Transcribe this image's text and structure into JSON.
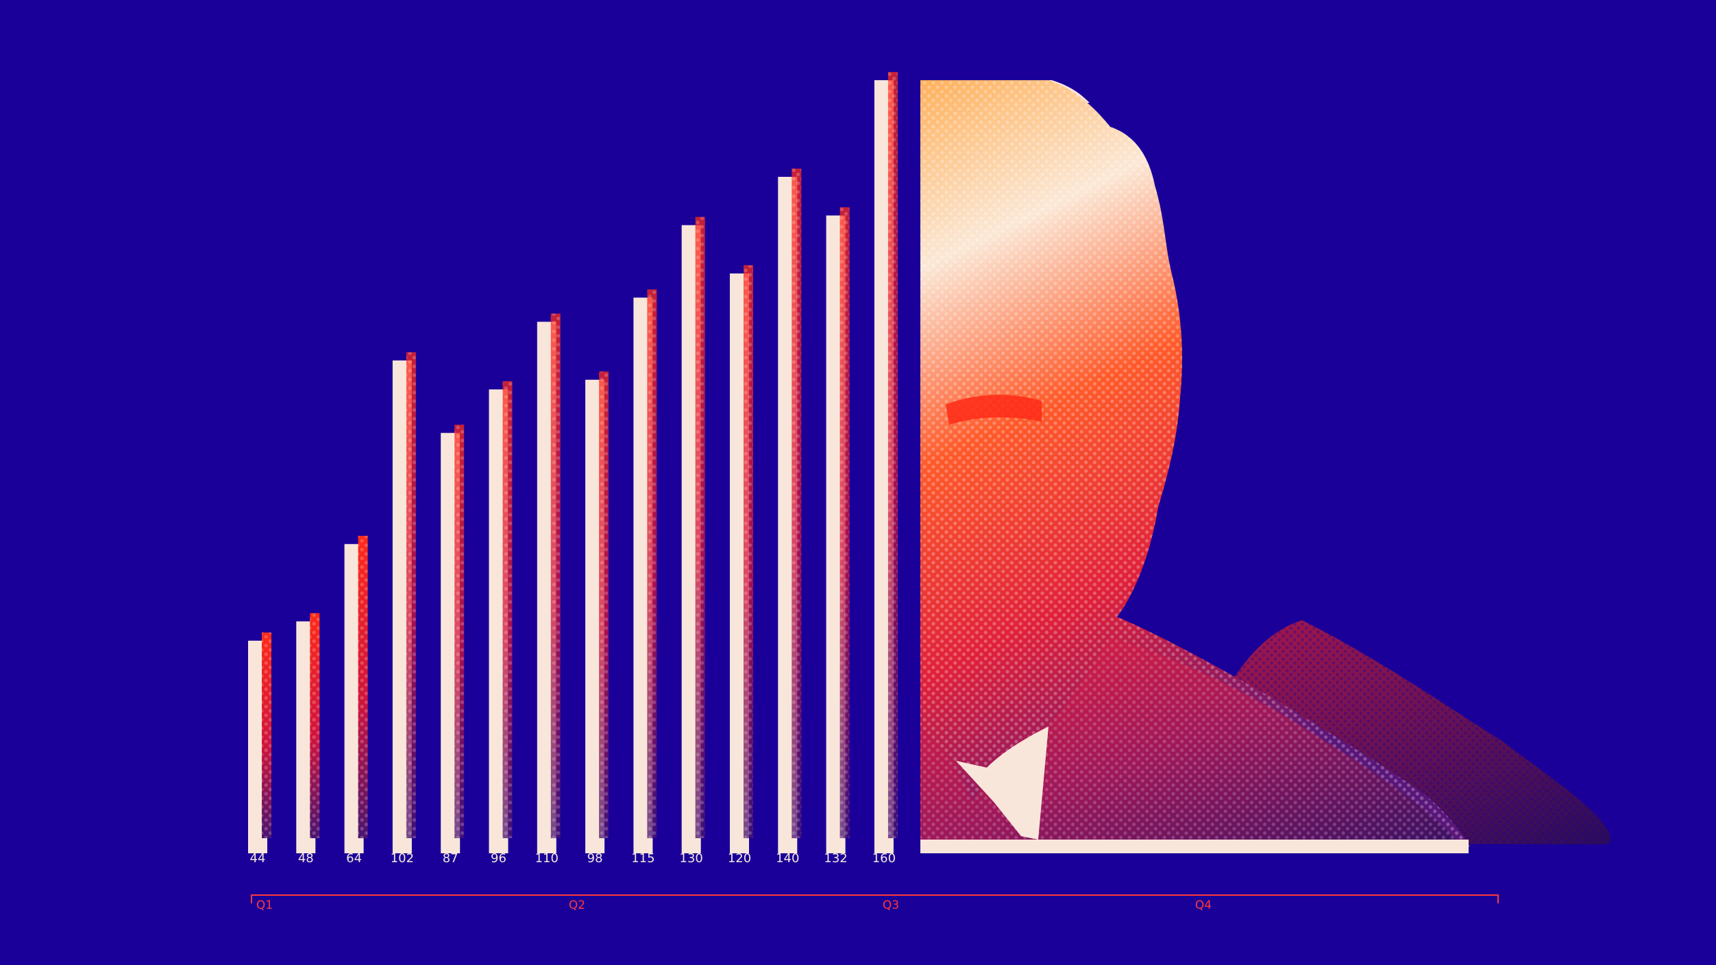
{
  "chart_data": {
    "type": "bar",
    "title": "",
    "xlabel": "",
    "ylabel": "",
    "categories": [
      "44",
      "48",
      "64",
      "102",
      "87",
      "96",
      "110",
      "98",
      "115",
      "130",
      "120",
      "140",
      "132",
      "160"
    ],
    "values": [
      44,
      48,
      64,
      102,
      87,
      96,
      110,
      98,
      115,
      130,
      120,
      140,
      132,
      160
    ],
    "ylim": [
      0,
      160
    ],
    "grid": false,
    "legend": "none",
    "quarters": [
      "Q1",
      "Q2",
      "Q3",
      "Q4"
    ]
  },
  "colors": {
    "background": "#1a0099",
    "bar": "#f9e6da",
    "bar_texture_top": "#ff2a18",
    "bar_texture_bottom": "#4a1470",
    "axis_bracket": "#ff3a3a",
    "portrait_light": "#fbe8d6",
    "portrait_warm": "#ff6a2a",
    "portrait_dark": "#3c1064"
  },
  "illustration": {
    "subject": "halftone portrait bar"
  }
}
